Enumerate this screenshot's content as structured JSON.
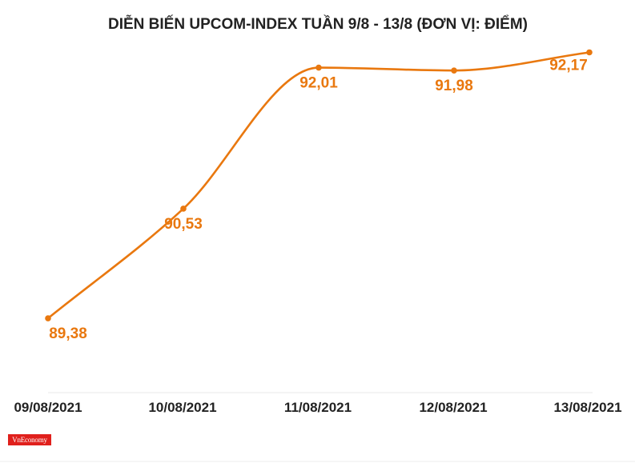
{
  "chart_data": {
    "type": "line",
    "title": "DIỄN BIẾN UPCOM-INDEX TUẦN 9/8 - 13/8 (ĐƠN VỊ: ĐIỂM)",
    "categories": [
      "09/08/2021",
      "10/08/2021",
      "11/08/2021",
      "12/08/2021",
      "13/08/2021"
    ],
    "values": [
      89.38,
      90.53,
      92.01,
      91.98,
      92.17
    ],
    "data_labels": [
      "89,38",
      "90,53",
      "92,01",
      "91,98",
      "92,17"
    ],
    "ylim": [
      88.6,
      92.3
    ],
    "grid": false,
    "legend": "none",
    "line_color": "#e9780f",
    "label_color": "#e9780f"
  },
  "logo": {
    "text": "VnEconomy",
    "color": "#e0201c"
  }
}
